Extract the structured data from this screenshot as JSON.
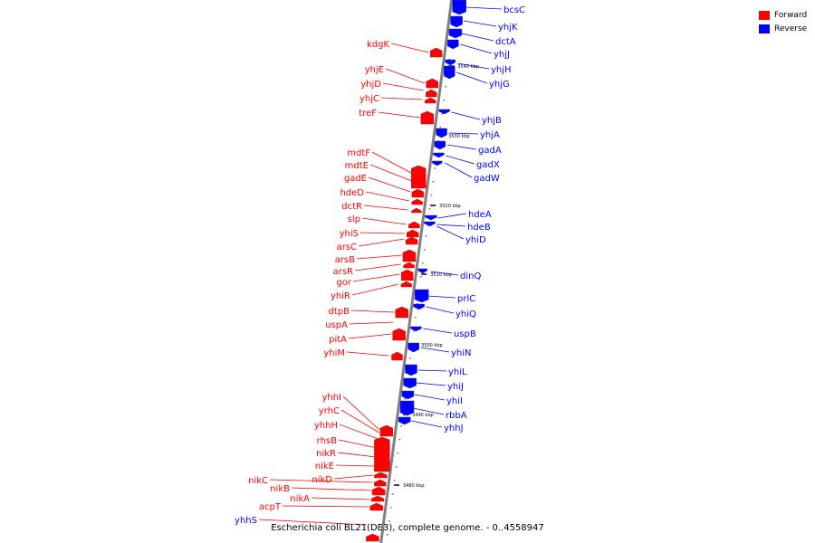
{
  "caption": "Escherichia coli BL21(DE3), complete genome. - 0..4558947",
  "legend": [
    {
      "label": "Forward",
      "color": "#ff0000"
    },
    {
      "label": "Reverse",
      "color": "#0000ff"
    }
  ],
  "colors": {
    "forward": "#ff0000",
    "reverse": "#0000ff",
    "backbone": "#808080"
  },
  "scale_ticks": [
    {
      "label": "3540 kbp",
      "pos": 3540
    },
    {
      "label": "3530 kbp",
      "pos": 3530
    },
    {
      "label": "3520 kbp",
      "pos": 3520
    },
    {
      "label": "3510 kbp",
      "pos": 3510
    },
    {
      "label": "3500 kbp",
      "pos": 3500
    },
    {
      "label": "3490 kbp",
      "pos": 3490
    },
    {
      "label": "3480 kbp",
      "pos": 3480
    }
  ],
  "reverse_genes": [
    "bcsC",
    "yhjK",
    "dctA",
    "yhjJ",
    "yhjH",
    "yhjG",
    "yhjB",
    "yhjA",
    "gadA",
    "gadX",
    "gadW",
    "hdeA",
    "hdeB",
    "yhiD",
    "dinQ",
    "prlC",
    "yhiQ",
    "uspB",
    "yhiN",
    "yhiL",
    "yhiJ",
    "yhiI",
    "rbbA",
    "yhhJ"
  ],
  "forward_genes": [
    "kdgK",
    "yhjE",
    "yhjD",
    "yhjC",
    "treF",
    "mdtF",
    "mdtE",
    "gadE",
    "hdeD",
    "dctR",
    "slp",
    "yhiS",
    "arsC",
    "arsB",
    "arsR",
    "gor",
    "yhiR",
    "dtpB",
    "uspA",
    "pitA",
    "yhiM",
    "yhhI",
    "yrhC",
    "yhhH",
    "rhsB",
    "nikR",
    "nikE",
    "nikD",
    "nikC",
    "nikB",
    "nikA",
    "acpT",
    "yhhS"
  ]
}
